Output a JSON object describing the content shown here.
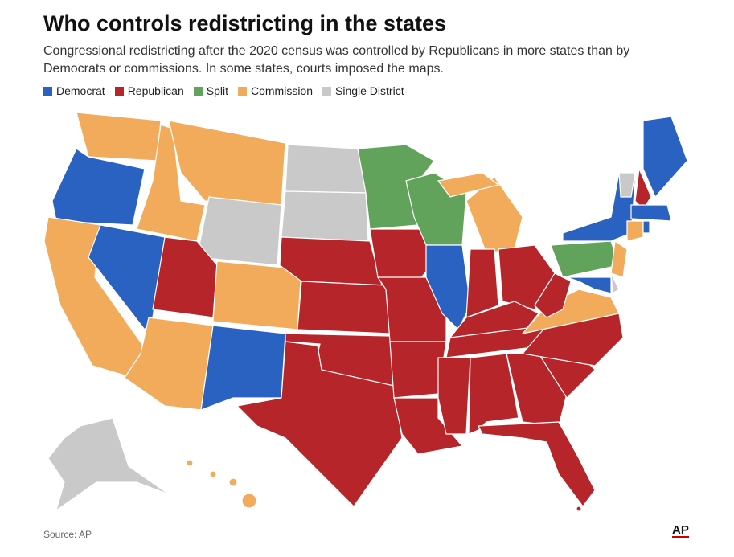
{
  "header": {
    "title": "Who controls redistricting in the states",
    "subtitle": "Congressional redistricting after the 2020 census was controlled by Republicans in more states than by Democrats or commissions. In some states, courts imposed the maps."
  },
  "legend": [
    {
      "label": "Democrat",
      "color": "#2a62c1"
    },
    {
      "label": "Republican",
      "color": "#b5252a"
    },
    {
      "label": "Split",
      "color": "#62a35c"
    },
    {
      "label": "Commission",
      "color": "#f2ab5a"
    },
    {
      "label": "Single District",
      "color": "#c9c9c9"
    }
  ],
  "footer": {
    "source": "Source: AP",
    "logo": "AP"
  }
}
